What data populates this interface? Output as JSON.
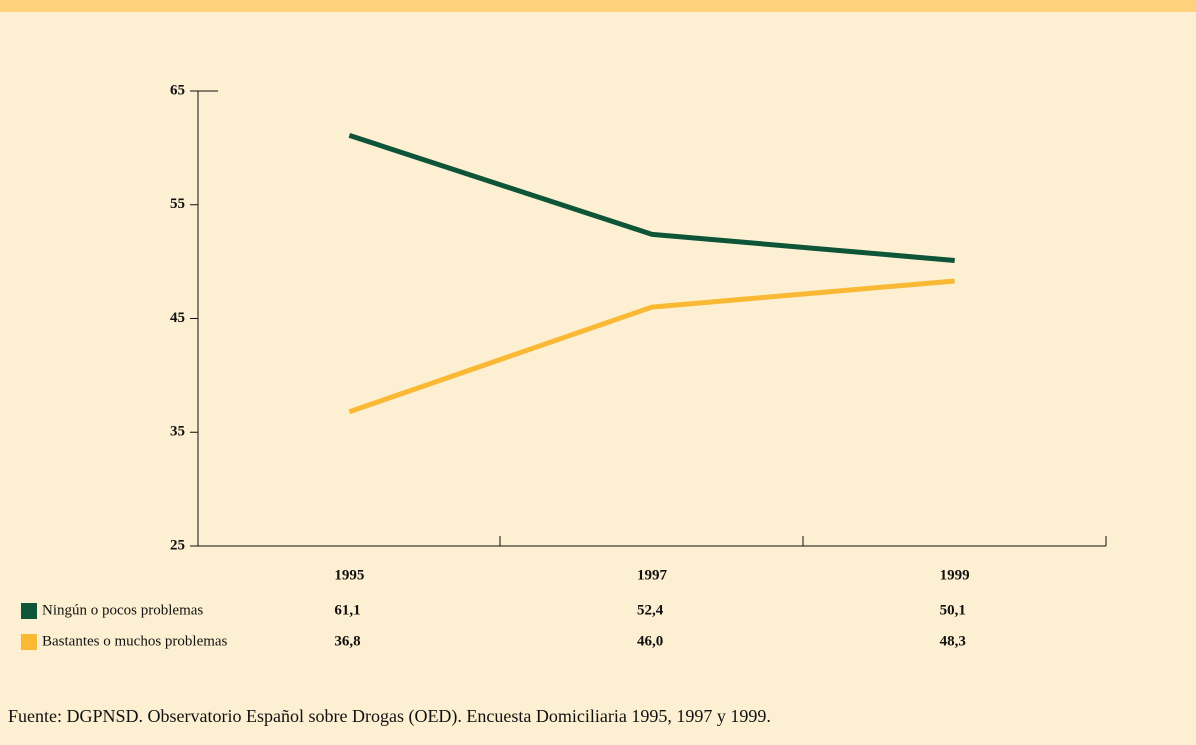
{
  "chart_data": {
    "type": "line",
    "categories": [
      "1995",
      "1997",
      "1999"
    ],
    "series": [
      {
        "name": "Ningún o pocos problemas",
        "color": "#0d5438",
        "values": [
          61.1,
          52.4,
          50.1
        ],
        "value_labels": [
          "61,1",
          "52,4",
          "50,1"
        ]
      },
      {
        "name": "Bastantes o muchos problemas",
        "color": "#f9b934",
        "values": [
          36.8,
          46.0,
          48.3
        ],
        "value_labels": [
          "36,8",
          "46,0",
          "48,3"
        ]
      }
    ],
    "ylim": [
      25,
      65
    ],
    "yticks": [
      25,
      35,
      45,
      55,
      65
    ],
    "source": "Fuente: DGPNSD. Observatorio Español sobre Drogas (OED). Encuesta Domiciliaria 1995, 1997 y 1999."
  }
}
